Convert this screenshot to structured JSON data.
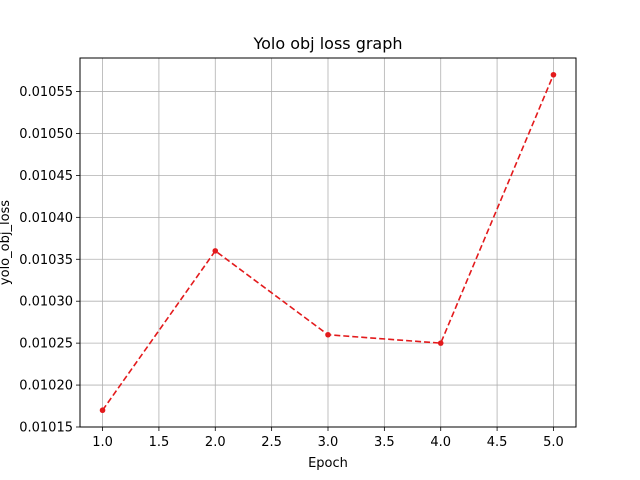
{
  "chart_data": {
    "type": "line",
    "title": "Yolo obj loss graph",
    "xlabel": "Epoch",
    "ylabel": "yolo_obj_loss",
    "x": [
      1.0,
      2.0,
      3.0,
      4.0,
      5.0
    ],
    "series": [
      {
        "values": [
          0.01017,
          0.01036,
          0.01026,
          0.01025,
          0.01057
        ],
        "color": "#e31a1c",
        "line_style": "dashed",
        "marker": "circle"
      }
    ],
    "xlim": [
      0.8,
      5.2
    ],
    "ylim": [
      0.01015,
      0.01059
    ],
    "xticks": [
      1.0,
      1.5,
      2.0,
      2.5,
      3.0,
      3.5,
      4.0,
      4.5,
      5.0
    ],
    "xtick_labels": [
      "1.0",
      "1.5",
      "2.0",
      "2.5",
      "3.0",
      "3.5",
      "4.0",
      "4.5",
      "5.0"
    ],
    "yticks": [
      0.01015,
      0.0102,
      0.01025,
      0.0103,
      0.01035,
      0.0104,
      0.01045,
      0.0105,
      0.01055
    ],
    "ytick_labels": [
      "0.01015",
      "0.01020",
      "0.01025",
      "0.01030",
      "0.01035",
      "0.01040",
      "0.01045",
      "0.01050",
      "0.01055"
    ],
    "grid": true,
    "legend": false
  }
}
